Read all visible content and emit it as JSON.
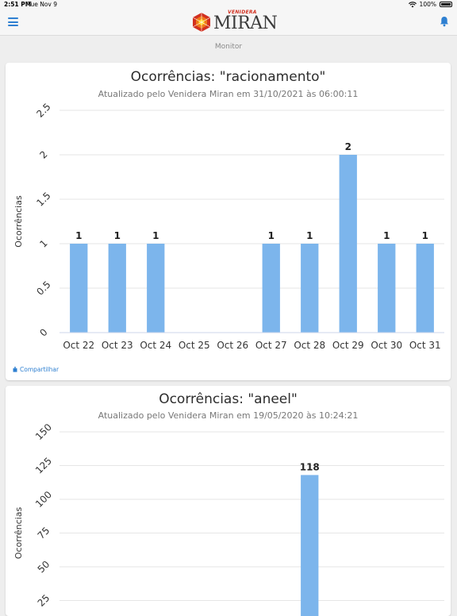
{
  "status_bar": {
    "time": "2:51 PM",
    "date": "Tue Nov 9",
    "battery": "100%"
  },
  "header": {
    "logo_small": "VENIDERA",
    "logo_main": "MIRAN",
    "menu_icon": "hamburger-menu-icon",
    "bell_icon": "bell-icon",
    "accent_color": "#2f80d1",
    "logo_color": "#d23020"
  },
  "subheader": {
    "title": "Monitor"
  },
  "cards": [
    {
      "title": "Ocorrências: \"racionamento\"",
      "subtitle": "Atualizado pelo Venidera Miran em 31/10/2021 às 06:00:11",
      "share_label": "Compartilhar"
    },
    {
      "title": "Ocorrências: \"aneel\"",
      "subtitle": "Atualizado pelo Venidera Miran em 19/05/2020 às 10:24:21"
    }
  ],
  "chart_data": [
    {
      "type": "bar",
      "ylabel": "Ocorrências",
      "ylim": [
        0,
        2.5
      ],
      "yticks": [
        "0",
        "0.5",
        "1",
        "1.5",
        "2",
        "2.5"
      ],
      "ytick_values": [
        0,
        0.5,
        1,
        1.5,
        2,
        2.5
      ],
      "categories": [
        "Oct 22",
        "Oct 23",
        "Oct 24",
        "Oct 25",
        "Oct 26",
        "Oct 27",
        "Oct 28",
        "Oct 29",
        "Oct 30",
        "Oct 31"
      ],
      "values": [
        1,
        1,
        1,
        0,
        0,
        1,
        1,
        2,
        1,
        1
      ],
      "data_labels": [
        "1",
        "1",
        "1",
        "",
        "",
        "1",
        "1",
        "2",
        "1",
        "1"
      ],
      "bar_color": "#7cb5ec",
      "grid": true
    },
    {
      "type": "bar",
      "ylabel": "Ocorrências",
      "ylim": [
        0,
        150
      ],
      "yticks": [
        "25",
        "50",
        "75",
        "100",
        "125",
        "150"
      ],
      "ytick_values": [
        25,
        50,
        75,
        100,
        125,
        150
      ],
      "values": [
        118
      ],
      "data_labels": [
        "118"
      ],
      "bar_color": "#7cb5ec",
      "grid": true
    }
  ]
}
